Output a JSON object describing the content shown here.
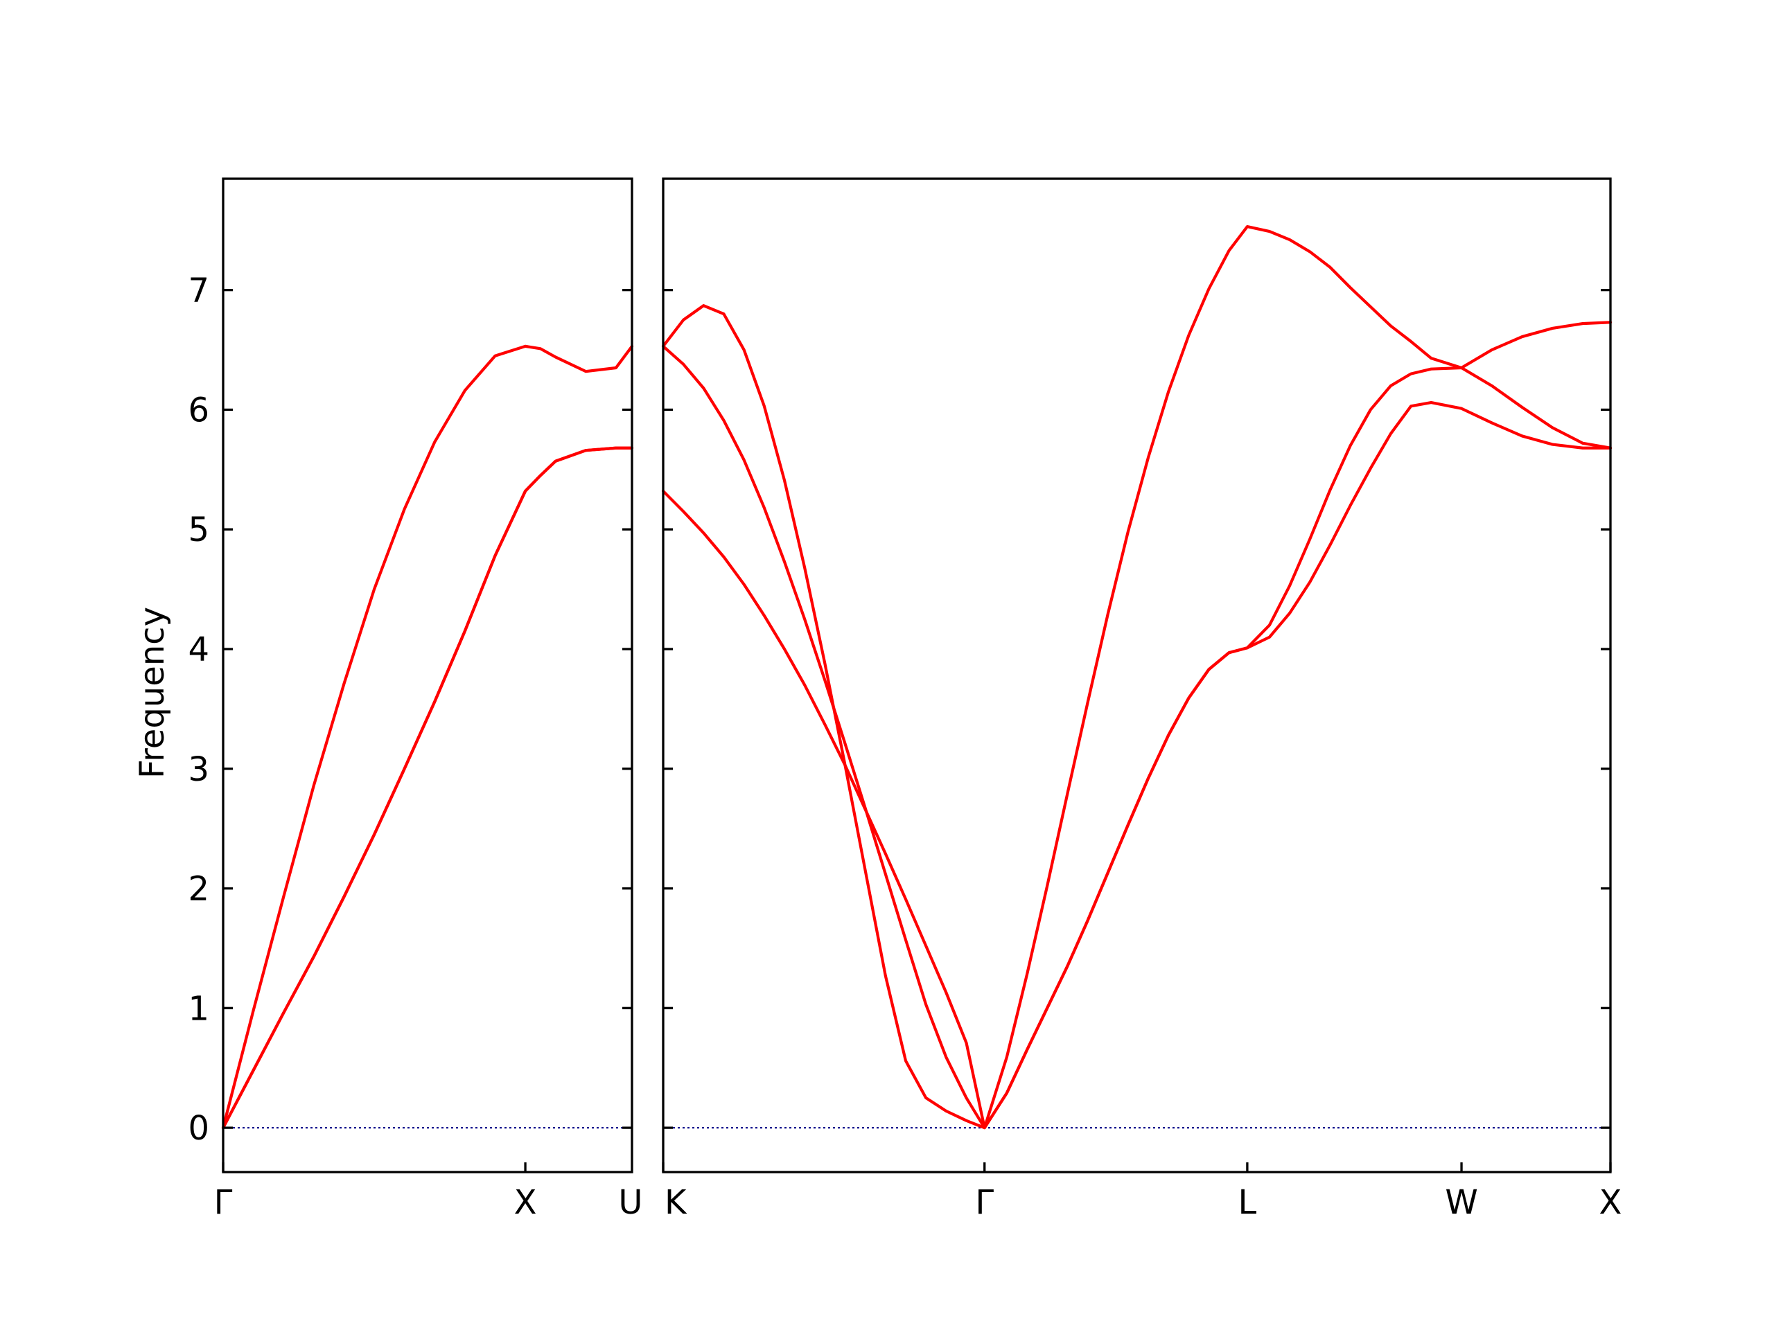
{
  "chart_data": {
    "type": "line",
    "title": "",
    "ylabel": "Frequency",
    "xlabel": "",
    "ylim": [
      -0.37,
      7.93
    ],
    "yticks": [
      0,
      1,
      2,
      3,
      4,
      5,
      6,
      7
    ],
    "grid": false,
    "legend": "none",
    "colors": {
      "bands": "#ff0000",
      "zero_line": "#00008b",
      "axes": "#000000"
    },
    "panels": [
      {
        "name": "Γ-X-U",
        "xlim": [
          0,
          1.353
        ],
        "xticks": [
          {
            "x": 0,
            "label": "Γ"
          },
          {
            "x": 1.0,
            "label": "X"
          }
        ],
        "series": [
          {
            "points": [
              [
                0,
                0
              ],
              [
                0.1,
                0.48
              ],
              [
                0.2,
                0.96
              ],
              [
                0.3,
                1.43
              ],
              [
                0.4,
                1.93
              ],
              [
                0.5,
                2.45
              ],
              [
                0.6,
                3.0
              ],
              [
                0.7,
                3.56
              ],
              [
                0.8,
                4.15
              ],
              [
                0.9,
                4.78
              ],
              [
                1.0,
                5.32
              ],
              [
                1.05,
                5.45
              ],
              [
                1.1,
                5.57
              ],
              [
                1.2,
                5.66
              ],
              [
                1.3,
                5.68
              ],
              [
                1.353,
                5.68
              ]
            ]
          },
          {
            "points": [
              [
                0,
                0
              ],
              [
                0.1,
                0.98
              ],
              [
                0.2,
                1.93
              ],
              [
                0.3,
                2.86
              ],
              [
                0.4,
                3.71
              ],
              [
                0.5,
                4.5
              ],
              [
                0.6,
                5.17
              ],
              [
                0.7,
                5.73
              ],
              [
                0.8,
                6.16
              ],
              [
                0.9,
                6.45
              ],
              [
                1.0,
                6.53
              ],
              [
                1.05,
                6.51
              ],
              [
                1.1,
                6.44
              ],
              [
                1.2,
                6.32
              ],
              [
                1.3,
                6.35
              ],
              [
                1.353,
                6.53
              ]
            ]
          },
          {
            "points": [
              [
                0,
                0
              ],
              [
                0.1,
                0.48
              ],
              [
                0.2,
                0.96
              ],
              [
                0.3,
                1.43
              ],
              [
                0.4,
                1.93
              ],
              [
                0.5,
                2.45
              ],
              [
                0.6,
                3.0
              ],
              [
                0.7,
                3.56
              ],
              [
                0.8,
                4.15
              ],
              [
                0.9,
                4.78
              ],
              [
                1.0,
                5.32
              ],
              [
                1.05,
                5.45
              ],
              [
                1.1,
                5.57
              ],
              [
                1.2,
                5.66
              ],
              [
                1.3,
                5.68
              ],
              [
                1.353,
                5.68
              ]
            ]
          }
        ]
      },
      {
        "name": "K-Γ-L-W-X",
        "xlim": [
          0,
          4.687
        ],
        "xticks": [
          {
            "x": 0,
            "label": "K"
          },
          {
            "x": 1.59,
            "label": "Γ"
          },
          {
            "x": 2.89,
            "label": "L"
          },
          {
            "x": 3.95,
            "label": "W"
          },
          {
            "x": 4.687,
            "label": "X"
          }
        ],
        "series": [
          {
            "points": [
              [
                0,
                5.32
              ],
              [
                0.1,
                5.15
              ],
              [
                0.2,
                4.97
              ],
              [
                0.3,
                4.77
              ],
              [
                0.4,
                4.54
              ],
              [
                0.5,
                4.28
              ],
              [
                0.6,
                4.0
              ],
              [
                0.7,
                3.7
              ],
              [
                0.8,
                3.37
              ],
              [
                0.9,
                3.03
              ],
              [
                1.0,
                2.66
              ],
              [
                1.1,
                2.29
              ],
              [
                1.2,
                1.91
              ],
              [
                1.3,
                1.52
              ],
              [
                1.4,
                1.13
              ],
              [
                1.5,
                0.71
              ],
              [
                1.59,
                0
              ],
              [
                1.7,
                0.29
              ],
              [
                1.8,
                0.65
              ],
              [
                1.9,
                1.0
              ],
              [
                2.0,
                1.35
              ],
              [
                2.1,
                1.73
              ],
              [
                2.2,
                2.13
              ],
              [
                2.3,
                2.53
              ],
              [
                2.4,
                2.92
              ],
              [
                2.5,
                3.28
              ],
              [
                2.6,
                3.59
              ],
              [
                2.7,
                3.83
              ],
              [
                2.8,
                3.97
              ],
              [
                2.89,
                4.01
              ],
              [
                3.0,
                4.1
              ],
              [
                3.1,
                4.3
              ],
              [
                3.2,
                4.56
              ],
              [
                3.3,
                4.87
              ],
              [
                3.4,
                5.2
              ],
              [
                3.5,
                5.51
              ],
              [
                3.6,
                5.8
              ],
              [
                3.7,
                6.03
              ],
              [
                3.8,
                6.06
              ],
              [
                3.95,
                6.01
              ],
              [
                4.1,
                5.89
              ],
              [
                4.25,
                5.78
              ],
              [
                4.4,
                5.71
              ],
              [
                4.55,
                5.68
              ],
              [
                4.687,
                5.68
              ]
            ]
          },
          {
            "points": [
              [
                0,
                6.53
              ],
              [
                0.1,
                6.38
              ],
              [
                0.2,
                6.18
              ],
              [
                0.3,
                5.91
              ],
              [
                0.4,
                5.58
              ],
              [
                0.5,
                5.18
              ],
              [
                0.6,
                4.73
              ],
              [
                0.7,
                4.25
              ],
              [
                0.8,
                3.74
              ],
              [
                0.9,
                3.21
              ],
              [
                1.0,
                2.67
              ],
              [
                1.1,
                2.12
              ],
              [
                1.2,
                1.57
              ],
              [
                1.3,
                1.03
              ],
              [
                1.4,
                0.59
              ],
              [
                1.5,
                0.25
              ],
              [
                1.59,
                0
              ],
              [
                1.7,
                0.29
              ],
              [
                1.8,
                0.65
              ],
              [
                1.9,
                1.0
              ],
              [
                2.0,
                1.35
              ],
              [
                2.1,
                1.73
              ],
              [
                2.2,
                2.13
              ],
              [
                2.3,
                2.53
              ],
              [
                2.4,
                2.92
              ],
              [
                2.5,
                3.28
              ],
              [
                2.6,
                3.59
              ],
              [
                2.7,
                3.83
              ],
              [
                2.8,
                3.97
              ],
              [
                2.89,
                4.01
              ],
              [
                3.0,
                4.2
              ],
              [
                3.1,
                4.53
              ],
              [
                3.2,
                4.92
              ],
              [
                3.3,
                5.33
              ],
              [
                3.4,
                5.7
              ],
              [
                3.5,
                6.0
              ],
              [
                3.6,
                6.2
              ],
              [
                3.7,
                6.3
              ],
              [
                3.8,
                6.34
              ],
              [
                3.95,
                6.35
              ],
              [
                4.1,
                6.5
              ],
              [
                4.25,
                6.61
              ],
              [
                4.4,
                6.68
              ],
              [
                4.55,
                6.72
              ],
              [
                4.687,
                6.73
              ]
            ]
          },
          {
            "points": [
              [
                0,
                6.53
              ],
              [
                0.1,
                6.75
              ],
              [
                0.2,
                6.87
              ],
              [
                0.3,
                6.8
              ],
              [
                0.4,
                6.5
              ],
              [
                0.5,
                6.03
              ],
              [
                0.6,
                5.41
              ],
              [
                0.7,
                4.68
              ],
              [
                0.8,
                3.88
              ],
              [
                0.9,
                3.03
              ],
              [
                1.0,
                2.15
              ],
              [
                1.1,
                1.27
              ],
              [
                1.2,
                0.56
              ],
              [
                1.3,
                0.25
              ],
              [
                1.4,
                0.14
              ],
              [
                1.5,
                0.06
              ],
              [
                1.59,
                0
              ],
              [
                1.7,
                0.59
              ],
              [
                1.8,
                1.28
              ],
              [
                1.9,
                2.02
              ],
              [
                2.0,
                2.79
              ],
              [
                2.1,
                3.55
              ],
              [
                2.2,
                4.29
              ],
              [
                2.3,
                4.98
              ],
              [
                2.4,
                5.6
              ],
              [
                2.5,
                6.15
              ],
              [
                2.6,
                6.62
              ],
              [
                2.7,
                7.01
              ],
              [
                2.8,
                7.33
              ],
              [
                2.89,
                7.53
              ],
              [
                3.0,
                7.49
              ],
              [
                3.1,
                7.42
              ],
              [
                3.2,
                7.32
              ],
              [
                3.3,
                7.19
              ],
              [
                3.4,
                7.02
              ],
              [
                3.5,
                6.86
              ],
              [
                3.6,
                6.7
              ],
              [
                3.7,
                6.57
              ],
              [
                3.8,
                6.43
              ],
              [
                3.95,
                6.35
              ],
              [
                4.1,
                6.2
              ],
              [
                4.25,
                6.02
              ],
              [
                4.4,
                5.85
              ],
              [
                4.55,
                5.72
              ],
              [
                4.687,
                5.68
              ]
            ]
          }
        ]
      }
    ]
  }
}
